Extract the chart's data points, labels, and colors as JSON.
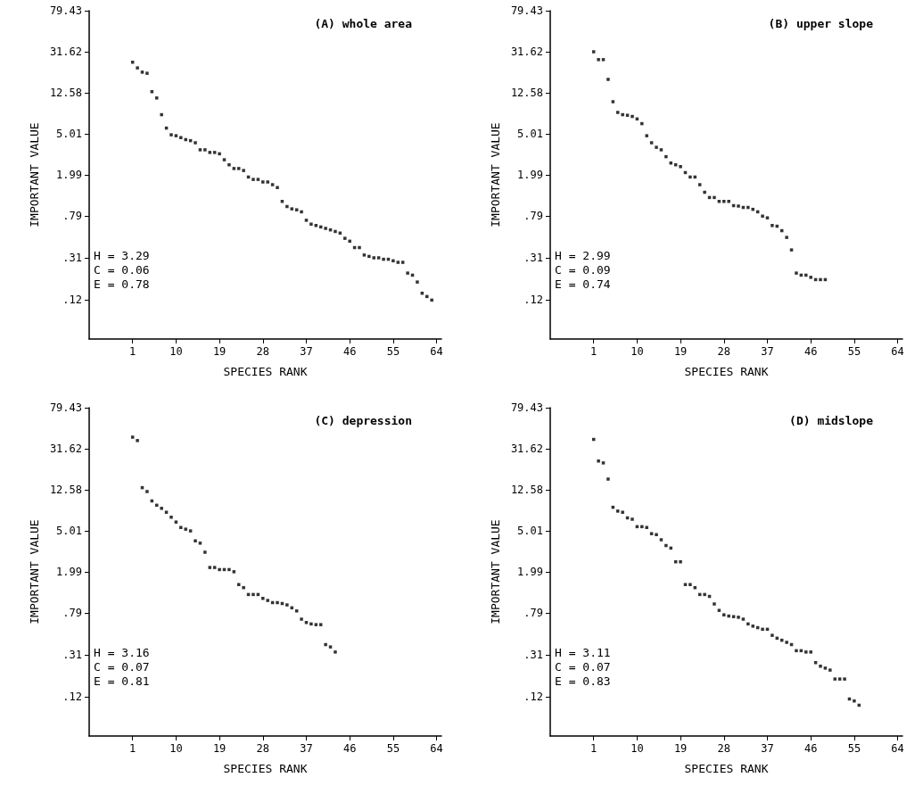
{
  "chart_data": [
    {
      "type": "scatter",
      "title": "(A) whole area",
      "xlabel": "SPECIES RANK",
      "ylabel": "IMPORTANT VALUE",
      "annotations": [
        "H = 3.29",
        "C = 0.06",
        "E = 0.78"
      ],
      "log": "y",
      "marker": "square",
      "grid": false,
      "color": "#000000",
      "x": [
        1,
        2,
        3,
        4,
        5,
        6,
        7,
        8,
        9,
        10,
        11,
        12,
        13,
        14,
        15,
        16,
        17,
        18,
        19,
        20,
        21,
        22,
        23,
        24,
        25,
        26,
        27,
        28,
        29,
        30,
        31,
        32,
        33,
        34,
        35,
        36,
        37,
        38,
        39,
        40,
        41,
        42,
        43,
        44,
        45,
        46,
        47,
        48,
        49,
        50,
        51,
        52,
        53,
        54,
        55,
        56,
        57,
        58,
        59,
        60,
        61,
        62,
        63
      ],
      "values": [
        25,
        22,
        20,
        19.5,
        12.9,
        11.2,
        7.7,
        5.7,
        4.9,
        4.8,
        4.6,
        4.4,
        4.3,
        4.1,
        3.5,
        3.5,
        3.3,
        3.3,
        3.2,
        2.8,
        2.5,
        2.3,
        2.3,
        2.2,
        1.9,
        1.8,
        1.8,
        1.7,
        1.7,
        1.6,
        1.5,
        1.1,
        0.98,
        0.93,
        0.91,
        0.87,
        0.72,
        0.66,
        0.64,
        0.62,
        0.6,
        0.58,
        0.56,
        0.54,
        0.48,
        0.45,
        0.39,
        0.39,
        0.33,
        0.32,
        0.31,
        0.31,
        0.3,
        0.3,
        0.29,
        0.28,
        0.28,
        0.22,
        0.21,
        0.18,
        0.14,
        0.13,
        0.12
      ],
      "xlim": [
        -8,
        65
      ],
      "xticks": [
        1,
        10,
        19,
        28,
        37,
        46,
        55,
        64
      ],
      "ylim": [
        0.0501,
        79.43
      ],
      "yticks": [
        79.43,
        31.62,
        12.58,
        5.01,
        1.99,
        {
          "value": 0.79,
          "label": ".79"
        },
        {
          "value": 0.31,
          "label": ".31"
        },
        {
          "value": 0.12,
          "label": ".12"
        }
      ]
    },
    {
      "type": "scatter",
      "title": "(B) upper slope",
      "xlabel": "SPECIES RANK",
      "ylabel": "IMPORTANT VALUE",
      "annotations": [
        "H = 2.99",
        "C = 0.09",
        "E = 0.74"
      ],
      "log": "y",
      "marker": "square",
      "grid": false,
      "color": "#000000",
      "x": [
        1,
        2,
        3,
        4,
        5,
        6,
        7,
        8,
        9,
        10,
        11,
        12,
        13,
        14,
        15,
        16,
        17,
        18,
        19,
        20,
        21,
        22,
        23,
        24,
        25,
        26,
        27,
        28,
        29,
        30,
        31,
        32,
        33,
        34,
        35,
        36,
        37,
        38,
        39,
        40,
        41,
        42,
        43,
        44,
        45,
        46,
        47,
        48,
        49
      ],
      "values": [
        31.6,
        26.5,
        26.5,
        17,
        10.3,
        8.1,
        7.7,
        7.6,
        7.4,
        7,
        6.3,
        4.8,
        4.1,
        3.7,
        3.5,
        3,
        2.6,
        2.5,
        2.4,
        2.1,
        1.9,
        1.9,
        1.6,
        1.35,
        1.2,
        1.2,
        1.1,
        1.1,
        1.1,
        1,
        0.99,
        0.96,
        0.96,
        0.92,
        0.87,
        0.79,
        0.76,
        0.64,
        0.63,
        0.57,
        0.49,
        0.37,
        0.22,
        0.21,
        0.21,
        0.2,
        0.19,
        0.19,
        0.19
      ],
      "xlim": [
        -8,
        65
      ],
      "xticks": [
        1,
        10,
        19,
        28,
        37,
        46,
        55,
        64
      ],
      "ylim": [
        0.0501,
        79.43
      ],
      "yticks": [
        79.43,
        31.62,
        12.58,
        5.01,
        1.99,
        {
          "value": 0.79,
          "label": ".79"
        },
        {
          "value": 0.31,
          "label": ".31"
        },
        {
          "value": 0.12,
          "label": ".12"
        }
      ]
    },
    {
      "type": "scatter",
      "title": "(C) depression",
      "xlabel": "SPECIES RANK",
      "ylabel": "IMPORTANT VALUE",
      "annotations": [
        "H = 3.16",
        "C = 0.07",
        "E = 0.81"
      ],
      "log": "y",
      "marker": "square",
      "grid": false,
      "color": "#000000",
      "x": [
        1,
        2,
        3,
        4,
        5,
        6,
        7,
        8,
        9,
        10,
        11,
        12,
        13,
        14,
        15,
        16,
        17,
        18,
        19,
        20,
        21,
        22,
        23,
        24,
        25,
        26,
        27,
        28,
        29,
        30,
        31,
        32,
        33,
        34,
        35,
        36,
        37,
        38,
        39,
        40,
        41,
        42,
        43
      ],
      "values": [
        41,
        38,
        13.2,
        12.1,
        9.8,
        8.9,
        8.3,
        7.6,
        6.8,
        6.1,
        5.4,
        5.2,
        5,
        4,
        3.8,
        3.1,
        2.2,
        2.2,
        2.1,
        2.1,
        2.1,
        2,
        1.5,
        1.4,
        1.2,
        1.2,
        1.2,
        1.1,
        1.05,
        1,
        1,
        0.98,
        0.95,
        0.89,
        0.83,
        0.69,
        0.64,
        0.62,
        0.61,
        0.61,
        0.39,
        0.37,
        0.33
      ],
      "xlim": [
        -8,
        65
      ],
      "xticks": [
        1,
        10,
        19,
        28,
        37,
        46,
        55,
        64
      ],
      "ylim": [
        0.0501,
        79.43
      ],
      "yticks": [
        79.43,
        31.62,
        12.58,
        5.01,
        1.99,
        {
          "value": 0.79,
          "label": ".79"
        },
        {
          "value": 0.31,
          "label": ".31"
        },
        {
          "value": 0.12,
          "label": ".12"
        }
      ]
    },
    {
      "type": "scatter",
      "title": "(D) midslope",
      "xlabel": "SPECIES RANK",
      "ylabel": "IMPORTANT VALUE",
      "annotations": [
        "H = 3.11",
        "C = 0.07",
        "E = 0.83"
      ],
      "log": "y",
      "marker": "square",
      "grid": false,
      "color": "#000000",
      "x": [
        1,
        2,
        3,
        4,
        5,
        6,
        7,
        8,
        9,
        10,
        11,
        12,
        13,
        14,
        15,
        16,
        17,
        18,
        19,
        20,
        21,
        22,
        23,
        24,
        25,
        26,
        27,
        28,
        29,
        30,
        31,
        32,
        33,
        34,
        35,
        36,
        37,
        38,
        39,
        40,
        41,
        42,
        43,
        44,
        45,
        46,
        47,
        48,
        49,
        50,
        51,
        52,
        53,
        54,
        55,
        56
      ],
      "values": [
        39,
        24,
        23,
        16,
        8.5,
        7.8,
        7.6,
        6.7,
        6.5,
        5.5,
        5.5,
        5.4,
        4.7,
        4.6,
        4.1,
        3.6,
        3.4,
        2.5,
        2.5,
        1.5,
        1.5,
        1.4,
        1.2,
        1.2,
        1.15,
        0.97,
        0.84,
        0.76,
        0.74,
        0.73,
        0.72,
        0.69,
        0.62,
        0.59,
        0.57,
        0.55,
        0.55,
        0.48,
        0.45,
        0.43,
        0.41,
        0.39,
        0.34,
        0.34,
        0.33,
        0.33,
        0.26,
        0.24,
        0.23,
        0.22,
        0.18,
        0.18,
        0.18,
        0.115,
        0.11,
        0.1
      ],
      "xlim": [
        -8,
        65
      ],
      "xticks": [
        1,
        10,
        19,
        28,
        37,
        46,
        55,
        64
      ],
      "ylim": [
        0.0501,
        79.43
      ],
      "yticks": [
        79.43,
        31.62,
        12.58,
        5.01,
        1.99,
        {
          "value": 0.79,
          "label": ".79"
        },
        {
          "value": 0.31,
          "label": ".31"
        },
        {
          "value": 0.12,
          "label": ".12"
        }
      ]
    }
  ]
}
